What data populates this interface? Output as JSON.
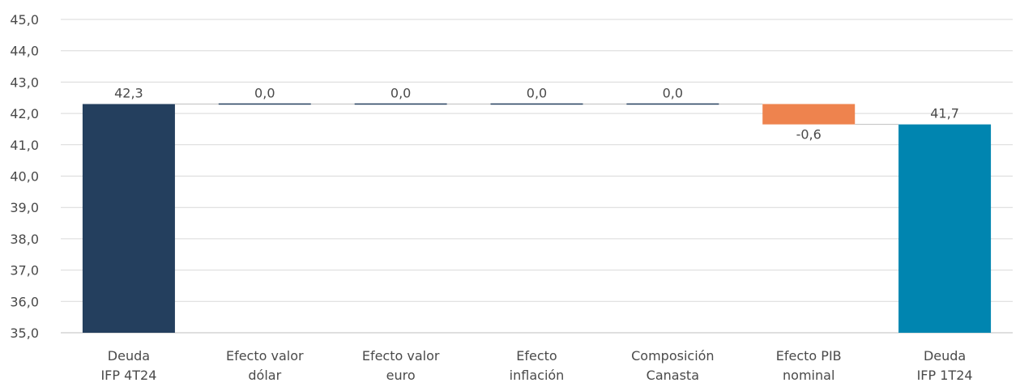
{
  "chart_data": {
    "type": "bar",
    "subtype": "waterfall",
    "title": "",
    "xlabel": "",
    "ylabel": "",
    "ylim": [
      35,
      45
    ],
    "yticks": [
      "35,0",
      "36,0",
      "37,0",
      "38,0",
      "39,0",
      "40,0",
      "41,0",
      "42,0",
      "43,0",
      "44,0",
      "45,0"
    ],
    "grid": true,
    "categories": [
      [
        "Deuda",
        "IFP 4T24"
      ],
      [
        "Efecto valor",
        "dólar"
      ],
      [
        "Efecto valor",
        "euro"
      ],
      [
        "Efecto",
        "inflación"
      ],
      [
        "Composición",
        "Canasta"
      ],
      [
        "Efecto PIB",
        "nominal"
      ],
      [
        "Deuda",
        "IFP 1T24"
      ]
    ],
    "bars": [
      {
        "kind": "total",
        "start": 35.0,
        "end": 42.3,
        "label": "42,3",
        "color": "#243f5e"
      },
      {
        "kind": "delta",
        "start": 42.3,
        "end": 42.3,
        "label": "0,0",
        "color": "#243f5e"
      },
      {
        "kind": "delta",
        "start": 42.3,
        "end": 42.3,
        "label": "0,0",
        "color": "#243f5e"
      },
      {
        "kind": "delta",
        "start": 42.3,
        "end": 42.3,
        "label": "0,0",
        "color": "#243f5e"
      },
      {
        "kind": "delta",
        "start": 42.3,
        "end": 42.3,
        "label": "0,0",
        "color": "#243f5e"
      },
      {
        "kind": "delta",
        "start": 42.3,
        "end": 41.65,
        "label": "-0,6",
        "color": "#ee834e"
      },
      {
        "kind": "total",
        "start": 35.0,
        "end": 41.65,
        "label": "41,7",
        "color": "#0085b0"
      }
    ]
  }
}
